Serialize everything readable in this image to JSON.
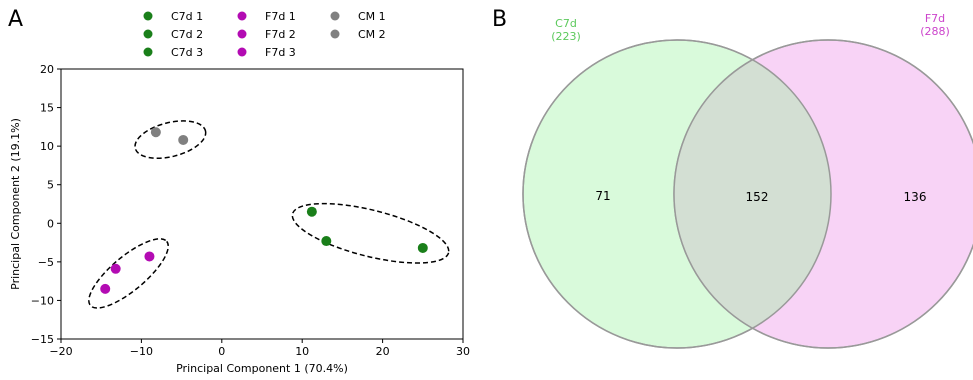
{
  "panels": {
    "a_letter": "A",
    "b_letter": "B"
  },
  "chart_data": [
    {
      "type": "scatter",
      "xlabel": "Principal Component 1 (70.4%)",
      "ylabel": "Principal Component 2 (19.1%)",
      "xlim": [
        -20,
        30
      ],
      "ylim": [
        -15,
        20
      ],
      "xticks": [
        -20,
        -10,
        0,
        10,
        20,
        30
      ],
      "yticks": [
        -15,
        -10,
        -5,
        0,
        5,
        10,
        15,
        20
      ],
      "xtick_labels": [
        "−20",
        "−10",
        "0",
        "10",
        "20",
        "30"
      ],
      "ytick_labels": [
        "−15",
        "−10",
        "−5",
        "0",
        "5",
        "10",
        "15",
        "20"
      ],
      "grid": false,
      "legend_position": "top",
      "series": [
        {
          "name": "C7d 1",
          "color": "#1a7f1a",
          "points": [
            [
              11.2,
              1.5
            ]
          ]
        },
        {
          "name": "C7d 2",
          "color": "#1a7f1a",
          "points": [
            [
              13.0,
              -2.3
            ]
          ]
        },
        {
          "name": "C7d 3",
          "color": "#1a7f1a",
          "points": [
            [
              25.0,
              -3.2
            ]
          ]
        },
        {
          "name": "F7d 1",
          "color": "#b30bb3",
          "points": [
            [
              -9.0,
              -4.3
            ]
          ]
        },
        {
          "name": "F7d 2",
          "color": "#b30bb3",
          "points": [
            [
              -13.2,
              -5.9
            ]
          ]
        },
        {
          "name": "F7d 3",
          "color": "#b30bb3",
          "points": [
            [
              -14.5,
              -8.5
            ]
          ]
        },
        {
          "name": "CM 1",
          "color": "#808080",
          "points": [
            [
              -8.2,
              11.8
            ]
          ]
        },
        {
          "name": "CM 2",
          "color": "#808080",
          "points": [
            [
              -4.8,
              10.8
            ]
          ]
        }
      ],
      "groups": [
        {
          "members": [
            "CM 1",
            "CM 2"
          ],
          "center": [
            -6.4,
            10.85
          ],
          "rx": 4.5,
          "ry": 2.2,
          "angle": 14
        },
        {
          "members": [
            "F7d 1",
            "F7d 2",
            "F7d 3"
          ],
          "center": [
            -11.6,
            -6.5
          ],
          "rx": 6.2,
          "ry": 2.2,
          "angle": 40
        },
        {
          "members": [
            "C7d 1",
            "C7d 2",
            "C7d 3"
          ],
          "center": [
            18.5,
            -1.3
          ],
          "rx": 10.0,
          "ry": 3.0,
          "angle": -14
        }
      ]
    },
    {
      "type": "venn",
      "sets": [
        {
          "label": "C7d",
          "total": "(223)",
          "color": "#d9fadb",
          "title_color": "#5cc95c"
        },
        {
          "label": "F7d",
          "total": "(288)",
          "color": "#f8d3f6",
          "title_color": "#cc44cc"
        }
      ],
      "intersection_color": "#d3dfd3",
      "regions": {
        "only_a": "71",
        "both": "152",
        "only_b": "136"
      }
    }
  ]
}
